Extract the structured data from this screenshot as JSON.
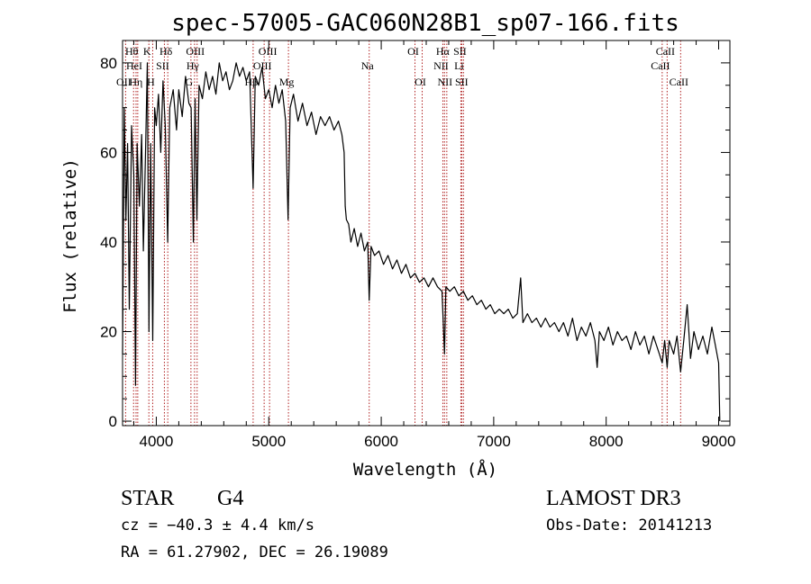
{
  "chart_data": {
    "type": "line",
    "title": "spec-57005-GAC060N28B1_sp07-166.fits",
    "xlabel": "Wavelength (Å)",
    "ylabel": "Flux (relative)",
    "xlim": [
      3700,
      9100
    ],
    "ylim": [
      -1,
      85
    ],
    "x_ticks": [
      4000,
      5000,
      6000,
      7000,
      8000,
      9000
    ],
    "y_ticks": [
      0,
      20,
      40,
      60,
      80
    ],
    "x_minor_step": 200,
    "y_minor_step": 5,
    "series": [
      {
        "color": "#000000",
        "points": [
          [
            3700,
            15
          ],
          [
            3715,
            70
          ],
          [
            3730,
            45
          ],
          [
            3745,
            62
          ],
          [
            3760,
            25
          ],
          [
            3780,
            66
          ],
          [
            3800,
            55
          ],
          [
            3815,
            8
          ],
          [
            3830,
            62
          ],
          [
            3850,
            48
          ],
          [
            3870,
            64
          ],
          [
            3885,
            38
          ],
          [
            3905,
            61
          ],
          [
            3920,
            80
          ],
          [
            3935,
            20
          ],
          [
            3950,
            62
          ],
          [
            3968,
            18
          ],
          [
            3985,
            70
          ],
          [
            4000,
            66
          ],
          [
            4020,
            73
          ],
          [
            4040,
            60
          ],
          [
            4060,
            76
          ],
          [
            4080,
            66
          ],
          [
            4101,
            40
          ],
          [
            4120,
            70
          ],
          [
            4150,
            74
          ],
          [
            4180,
            65
          ],
          [
            4200,
            74
          ],
          [
            4230,
            68
          ],
          [
            4260,
            77
          ],
          [
            4290,
            71
          ],
          [
            4310,
            70
          ],
          [
            4330,
            40
          ],
          [
            4345,
            72
          ],
          [
            4361,
            45
          ],
          [
            4380,
            75
          ],
          [
            4410,
            72
          ],
          [
            4440,
            78
          ],
          [
            4470,
            74
          ],
          [
            4500,
            77
          ],
          [
            4530,
            73
          ],
          [
            4560,
            80
          ],
          [
            4590,
            76
          ],
          [
            4620,
            78
          ],
          [
            4650,
            74
          ],
          [
            4680,
            76
          ],
          [
            4710,
            80
          ],
          [
            4740,
            77
          ],
          [
            4770,
            79
          ],
          [
            4800,
            76
          ],
          [
            4830,
            78
          ],
          [
            4861,
            52
          ],
          [
            4880,
            77
          ],
          [
            4910,
            75
          ],
          [
            4940,
            79
          ],
          [
            4970,
            72
          ],
          [
            5000,
            74
          ],
          [
            5030,
            70
          ],
          [
            5060,
            75
          ],
          [
            5090,
            71
          ],
          [
            5120,
            74
          ],
          [
            5150,
            67
          ],
          [
            5172,
            45
          ],
          [
            5190,
            70
          ],
          [
            5220,
            73
          ],
          [
            5260,
            67
          ],
          [
            5300,
            71
          ],
          [
            5340,
            66
          ],
          [
            5380,
            69
          ],
          [
            5420,
            64
          ],
          [
            5460,
            68
          ],
          [
            5500,
            66
          ],
          [
            5540,
            68
          ],
          [
            5580,
            65
          ],
          [
            5620,
            67
          ],
          [
            5650,
            64
          ],
          [
            5670,
            60
          ],
          [
            5680,
            48
          ],
          [
            5690,
            45
          ],
          [
            5710,
            44
          ],
          [
            5730,
            40
          ],
          [
            5760,
            43
          ],
          [
            5790,
            39
          ],
          [
            5820,
            42
          ],
          [
            5850,
            38
          ],
          [
            5880,
            40
          ],
          [
            5893,
            27
          ],
          [
            5910,
            39
          ],
          [
            5940,
            37
          ],
          [
            5980,
            38
          ],
          [
            6020,
            35
          ],
          [
            6060,
            37
          ],
          [
            6100,
            34
          ],
          [
            6140,
            36
          ],
          [
            6180,
            33
          ],
          [
            6220,
            35
          ],
          [
            6260,
            32
          ],
          [
            6300,
            33
          ],
          [
            6340,
            31
          ],
          [
            6380,
            32
          ],
          [
            6420,
            30
          ],
          [
            6460,
            32
          ],
          [
            6500,
            30
          ],
          [
            6540,
            29
          ],
          [
            6563,
            15
          ],
          [
            6575,
            30
          ],
          [
            6610,
            29
          ],
          [
            6650,
            30
          ],
          [
            6690,
            28
          ],
          [
            6730,
            29
          ],
          [
            6770,
            27
          ],
          [
            6810,
            28
          ],
          [
            6850,
            26
          ],
          [
            6890,
            27
          ],
          [
            6930,
            25
          ],
          [
            6970,
            26
          ],
          [
            7010,
            24
          ],
          [
            7050,
            25
          ],
          [
            7090,
            24
          ],
          [
            7130,
            25
          ],
          [
            7170,
            23
          ],
          [
            7210,
            24
          ],
          [
            7240,
            32
          ],
          [
            7260,
            22
          ],
          [
            7300,
            24
          ],
          [
            7340,
            22
          ],
          [
            7380,
            23
          ],
          [
            7420,
            21
          ],
          [
            7460,
            23
          ],
          [
            7500,
            21
          ],
          [
            7540,
            22
          ],
          [
            7580,
            20
          ],
          [
            7620,
            22
          ],
          [
            7660,
            19
          ],
          [
            7700,
            23
          ],
          [
            7740,
            18
          ],
          [
            7780,
            21
          ],
          [
            7820,
            19
          ],
          [
            7860,
            22
          ],
          [
            7900,
            18
          ],
          [
            7920,
            12
          ],
          [
            7940,
            20
          ],
          [
            7980,
            18
          ],
          [
            8020,
            21
          ],
          [
            8060,
            17
          ],
          [
            8100,
            20
          ],
          [
            8140,
            18
          ],
          [
            8180,
            19
          ],
          [
            8220,
            16
          ],
          [
            8260,
            20
          ],
          [
            8300,
            17
          ],
          [
            8340,
            19
          ],
          [
            8380,
            15
          ],
          [
            8420,
            19
          ],
          [
            8460,
            16
          ],
          [
            8498,
            13
          ],
          [
            8520,
            18
          ],
          [
            8542,
            12
          ],
          [
            8560,
            18
          ],
          [
            8600,
            15
          ],
          [
            8630,
            19
          ],
          [
            8662,
            11
          ],
          [
            8690,
            18
          ],
          [
            8720,
            26
          ],
          [
            8750,
            14
          ],
          [
            8780,
            20
          ],
          [
            8820,
            16
          ],
          [
            8860,
            19
          ],
          [
            8900,
            15
          ],
          [
            8940,
            21
          ],
          [
            8970,
            17
          ],
          [
            9000,
            13
          ],
          [
            9010,
            0
          ]
        ]
      }
    ],
    "lines": [
      {
        "name": "Hθ",
        "x": 3798,
        "row": 1
      },
      {
        "name": "OII",
        "x": 3727,
        "row": 3
      },
      {
        "name": "HeI",
        "x": 3820,
        "row": 2
      },
      {
        "name": "Hη",
        "x": 3835,
        "row": 3
      },
      {
        "name": "H",
        "x": 3968,
        "row": 3
      },
      {
        "name": "K",
        "x": 3934,
        "row": 1
      },
      {
        "name": "SII",
        "x": 4072,
        "row": 2
      },
      {
        "name": "Hδ",
        "x": 4102,
        "row": 1
      },
      {
        "name": "OIII",
        "x": 4363,
        "row": 1
      },
      {
        "name": "Hγ",
        "x": 4340,
        "row": 2
      },
      {
        "name": "G",
        "x": 4308,
        "row": 3
      },
      {
        "name": "OIII",
        "x": 5007,
        "row": 1
      },
      {
        "name": "OIII",
        "x": 4959,
        "row": 2
      },
      {
        "name": "Hβ",
        "x": 4861,
        "row": 3
      },
      {
        "name": "Mg",
        "x": 5175,
        "row": 3
      },
      {
        "name": "Na",
        "x": 5893,
        "row": 2
      },
      {
        "name": "OI",
        "x": 6300,
        "row": 1
      },
      {
        "name": "OI",
        "x": 6364,
        "row": 3
      },
      {
        "name": "Hα",
        "x": 6563,
        "row": 1
      },
      {
        "name": "NII",
        "x": 6548,
        "row": 2
      },
      {
        "name": "NII",
        "x": 6583,
        "row": 3
      },
      {
        "name": "SII",
        "x": 6716,
        "row": 1
      },
      {
        "name": "Li",
        "x": 6708,
        "row": 2
      },
      {
        "name": "SII",
        "x": 6731,
        "row": 3
      },
      {
        "name": "CaII",
        "x": 8542,
        "row": 1
      },
      {
        "name": "CaII",
        "x": 8498,
        "row": 2
      },
      {
        "name": "CaII",
        "x": 8662,
        "row": 3
      }
    ]
  },
  "info": {
    "class": "STAR",
    "subclass": "G4",
    "survey": "LAMOST DR3",
    "cz": "cz = −40.3 ± 4.4 km/s",
    "obs_date": "Obs-Date: 20141213",
    "coords": "RA =  61.27902, DEC =  26.19089"
  },
  "colors": {
    "spectrum": "#000000",
    "line_markers": "#b02020",
    "axes": "#000000"
  }
}
